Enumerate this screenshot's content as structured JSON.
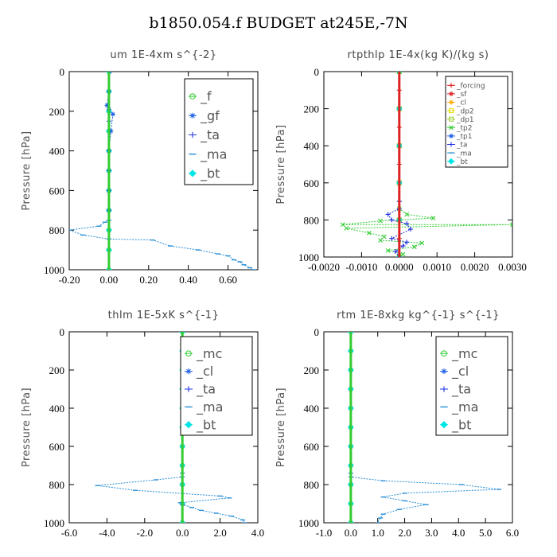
{
  "title": "b1850.054.f  BUDGET at245E,-7N",
  "chart_data": [
    {
      "type": "line",
      "title": "um   1E-4xm  s^{-2}",
      "ylabel": "Pressure [hPa]",
      "xlim": [
        -0.2,
        0.75
      ],
      "ylim": [
        1000,
        0
      ],
      "xticks": [
        -0.2,
        0.0,
        0.2,
        0.4,
        0.6
      ],
      "xtick_labels": [
        "-0.20",
        "0.00",
        "0.20",
        "0.40",
        "0.60"
      ],
      "yticks": [
        0,
        200,
        400,
        600,
        800,
        1000
      ],
      "ytick_labels": [
        "0",
        "200",
        "400",
        "600",
        "800",
        "1000"
      ],
      "legend_position": "top-right",
      "series": [
        {
          "name": "_f",
          "color": "#33cc33",
          "marker": "circle",
          "x": [
            0,
            0,
            0,
            0,
            0,
            0,
            0,
            0,
            0,
            0,
            0
          ],
          "y": [
            0,
            100,
            200,
            300,
            400,
            500,
            600,
            700,
            800,
            900,
            1000
          ]
        },
        {
          "name": "_gf",
          "color": "#1e5fe6",
          "marker": "star",
          "x": [
            0.005,
            0.0,
            -0.01,
            0.0,
            0.02,
            0.01,
            0.0,
            0.0,
            0.0,
            0.0
          ],
          "y": [
            0,
            100,
            170,
            190,
            215,
            300,
            400,
            500,
            600,
            700
          ]
        },
        {
          "name": "_ta",
          "color": "#2233dd",
          "marker": "plus",
          "x": [
            0,
            0,
            0,
            0,
            0
          ],
          "y": [
            0,
            250,
            500,
            750,
            1000
          ]
        },
        {
          "name": "_ma",
          "color": "#2a8fd6",
          "marker": "dash",
          "x": [
            0.0,
            -0.02,
            -0.05,
            -0.2,
            -0.13,
            0.0,
            0.22,
            0.31,
            0.45,
            0.55,
            0.6,
            0.63,
            0.66,
            0.68,
            0.71,
            0.73
          ],
          "y": [
            750,
            760,
            780,
            800,
            825,
            845,
            850,
            880,
            900,
            920,
            930,
            950,
            960,
            975,
            990,
            1000
          ]
        },
        {
          "name": "_bt",
          "color": "#00e5e5",
          "marker": "diamond",
          "x": [
            0,
            0,
            0,
            0,
            0,
            0,
            0,
            0,
            0,
            0,
            0
          ],
          "y": [
            0,
            100,
            200,
            300,
            400,
            500,
            600,
            700,
            800,
            900,
            1000
          ]
        }
      ]
    },
    {
      "type": "line",
      "title": "rtpthlp   1E-4x(kg K)/(kg s)",
      "ylabel": "Pressure [hPa]",
      "xlim": [
        -0.002,
        0.003
      ],
      "ylim": [
        1000,
        0
      ],
      "xticks": [
        -0.002,
        -0.001,
        0.0,
        0.001,
        0.002,
        0.003
      ],
      "xtick_labels": [
        "-0.0020",
        "-0.0010",
        "0.0000",
        "0.0010",
        "0.0020",
        "0.0030"
      ],
      "yticks": [
        0,
        200,
        400,
        600,
        800,
        1000
      ],
      "ytick_labels": [
        "0",
        "200",
        "400",
        "600",
        "800",
        "1000"
      ],
      "legend_position": "top-right",
      "series": [
        {
          "name": "_forcing",
          "color": "#dd2222",
          "marker": "plus",
          "x": [
            0,
            0,
            0,
            0,
            0,
            0,
            0,
            0,
            0,
            0,
            0
          ],
          "y": [
            0,
            100,
            200,
            300,
            400,
            500,
            600,
            700,
            800,
            900,
            1000
          ]
        },
        {
          "name": "_sf",
          "color": "#dd2222",
          "marker": "star",
          "x": [
            0,
            0,
            0,
            0,
            0,
            0
          ],
          "y": [
            0,
            200,
            400,
            600,
            800,
            1000
          ]
        },
        {
          "name": "_cl",
          "color": "#ffaa00",
          "marker": "star",
          "x": [
            0,
            0,
            0,
            0,
            0,
            0
          ],
          "y": [
            0,
            200,
            400,
            600,
            800,
            1000
          ]
        },
        {
          "name": "_dp2",
          "color": "#e8d800",
          "marker": "square",
          "x": [
            0,
            0,
            0,
            0,
            0,
            0
          ],
          "y": [
            0,
            200,
            400,
            600,
            800,
            1000
          ]
        },
        {
          "name": "_dp1",
          "color": "#9acd32",
          "marker": "square",
          "x": [
            0,
            0,
            0,
            0,
            0,
            0
          ],
          "y": [
            0,
            200,
            400,
            600,
            800,
            1000
          ]
        },
        {
          "name": "_tp2",
          "color": "#33cc33",
          "marker": "cross",
          "x": [
            0.0,
            0.0,
            0.0002,
            0.0009,
            -0.0005,
            -0.0015,
            0.003,
            -0.0014,
            -0.0008,
            -0.0004,
            -0.0005,
            0.0006,
            0.0004,
            -0.0003,
            0.0001,
            0.0
          ],
          "y": [
            0,
            740,
            770,
            790,
            805,
            825,
            825,
            845,
            870,
            890,
            910,
            925,
            945,
            965,
            985,
            1000
          ]
        },
        {
          "name": "_tp1",
          "color": "#1e5fe6",
          "marker": "star",
          "x": [
            0,
            0,
            0,
            0,
            0,
            0
          ],
          "y": [
            0,
            200,
            400,
            600,
            800,
            1000
          ]
        },
        {
          "name": "_ta",
          "color": "#2233dd",
          "marker": "plus",
          "x": [
            0.0,
            0.0,
            -0.0003,
            -0.0002,
            0.0002,
            0.0003,
            -0.0002,
            0.0002,
            0.0001,
            -0.0001,
            0.0
          ],
          "y": [
            700,
            740,
            770,
            800,
            820,
            850,
            900,
            920,
            940,
            970,
            1000
          ]
        },
        {
          "name": "_ma",
          "color": "#2a8fd6",
          "marker": "dash",
          "x": [
            0,
            0,
            0,
            0,
            0,
            0
          ],
          "y": [
            0,
            200,
            400,
            600,
            800,
            1000
          ]
        },
        {
          "name": "_bt",
          "color": "#00e5e5",
          "marker": "diamond",
          "x": [
            0,
            0,
            0,
            0,
            0,
            0
          ],
          "y": [
            0,
            200,
            400,
            600,
            800,
            1000
          ]
        }
      ]
    },
    {
      "type": "line",
      "title": "thlm   1E-5xK  s^{-1}",
      "ylabel": "Pressure [hPa]",
      "xlim": [
        -6.0,
        4.0
      ],
      "ylim": [
        1000,
        0
      ],
      "xticks": [
        -6,
        -4,
        -2,
        0,
        2,
        4
      ],
      "xtick_labels": [
        "-6.0",
        "-4.0",
        "-2.0",
        "0.0",
        "2.0",
        "4.0"
      ],
      "yticks": [
        0,
        200,
        400,
        600,
        800,
        1000
      ],
      "ytick_labels": [
        "0",
        "200",
        "400",
        "600",
        "800",
        "1000"
      ],
      "legend_position": "top-right",
      "series": [
        {
          "name": "_mc",
          "color": "#33cc33",
          "marker": "circle",
          "x": [
            0,
            0,
            0,
            0,
            0,
            0,
            0,
            0,
            0,
            0,
            0
          ],
          "y": [
            0,
            100,
            200,
            300,
            400,
            500,
            600,
            700,
            800,
            900,
            1000
          ]
        },
        {
          "name": "_cl",
          "color": "#1e5fe6",
          "marker": "star",
          "x": [
            0,
            0,
            0,
            0,
            0,
            0
          ],
          "y": [
            0,
            200,
            400,
            600,
            800,
            1000
          ]
        },
        {
          "name": "_ta",
          "color": "#2233dd",
          "marker": "plus",
          "x": [
            0,
            0,
            0,
            0,
            0,
            0
          ],
          "y": [
            0,
            200,
            400,
            600,
            800,
            1000
          ]
        },
        {
          "name": "_ma",
          "color": "#2a8fd6",
          "marker": "dash",
          "x": [
            0.0,
            0.0,
            -1.4,
            -4.5,
            -2.5,
            2.0,
            2.5,
            -0.1,
            0.0,
            0.5,
            1.0,
            1.8,
            2.6,
            3.2,
            3.3
          ],
          "y": [
            740,
            760,
            775,
            805,
            830,
            860,
            870,
            895,
            905,
            920,
            935,
            950,
            965,
            985,
            1000
          ]
        },
        {
          "name": "_bt",
          "color": "#00e5e5",
          "marker": "diamond",
          "x": [
            0,
            0,
            0,
            0,
            0,
            0,
            0,
            0,
            0,
            0,
            0
          ],
          "y": [
            0,
            100,
            200,
            300,
            400,
            500,
            600,
            700,
            800,
            900,
            1000
          ]
        }
      ]
    },
    {
      "type": "line",
      "title": "rtm   1E-8xkg  kg^{-1} s^{-1}",
      "ylabel": "Pressure [hPa]",
      "xlim": [
        -1.0,
        6.0
      ],
      "ylim": [
        1000,
        0
      ],
      "xticks": [
        -1,
        0,
        1,
        2,
        3,
        4,
        5,
        6
      ],
      "xtick_labels": [
        "-1.0",
        "0.0",
        "1.0",
        "2.0",
        "3.0",
        "4.0",
        "5.0",
        "6.0"
      ],
      "yticks": [
        0,
        200,
        400,
        600,
        800,
        1000
      ],
      "ytick_labels": [
        "0",
        "200",
        "400",
        "600",
        "800",
        "1000"
      ],
      "legend_position": "top-right",
      "series": [
        {
          "name": "_mc",
          "color": "#33cc33",
          "marker": "circle",
          "x": [
            0,
            0,
            0,
            0,
            0,
            0,
            0,
            0,
            0,
            0,
            0
          ],
          "y": [
            0,
            100,
            200,
            300,
            400,
            500,
            600,
            700,
            800,
            900,
            1000
          ]
        },
        {
          "name": "_cl",
          "color": "#1e5fe6",
          "marker": "star",
          "x": [
            0,
            0,
            0,
            0,
            0,
            0
          ],
          "y": [
            0,
            200,
            400,
            600,
            800,
            1000
          ]
        },
        {
          "name": "_ta",
          "color": "#2233dd",
          "marker": "plus",
          "x": [
            0,
            0,
            0,
            0,
            0,
            0
          ],
          "y": [
            0,
            200,
            400,
            600,
            800,
            1000
          ]
        },
        {
          "name": "_ma",
          "color": "#2a8fd6",
          "marker": "dash",
          "x": [
            0.0,
            0.0,
            1.2,
            4.1,
            5.5,
            2.0,
            1.2,
            2.0,
            2.8,
            1.8,
            1.2,
            1.1,
            1.0
          ],
          "y": [
            740,
            760,
            780,
            800,
            825,
            845,
            865,
            885,
            905,
            930,
            955,
            975,
            1000
          ]
        },
        {
          "name": "_bt",
          "color": "#00e5e5",
          "marker": "diamond",
          "x": [
            0,
            0,
            0,
            0,
            0,
            0,
            0,
            0,
            0,
            0,
            0
          ],
          "y": [
            0,
            100,
            200,
            300,
            400,
            500,
            600,
            700,
            800,
            900,
            1000
          ]
        }
      ]
    }
  ]
}
